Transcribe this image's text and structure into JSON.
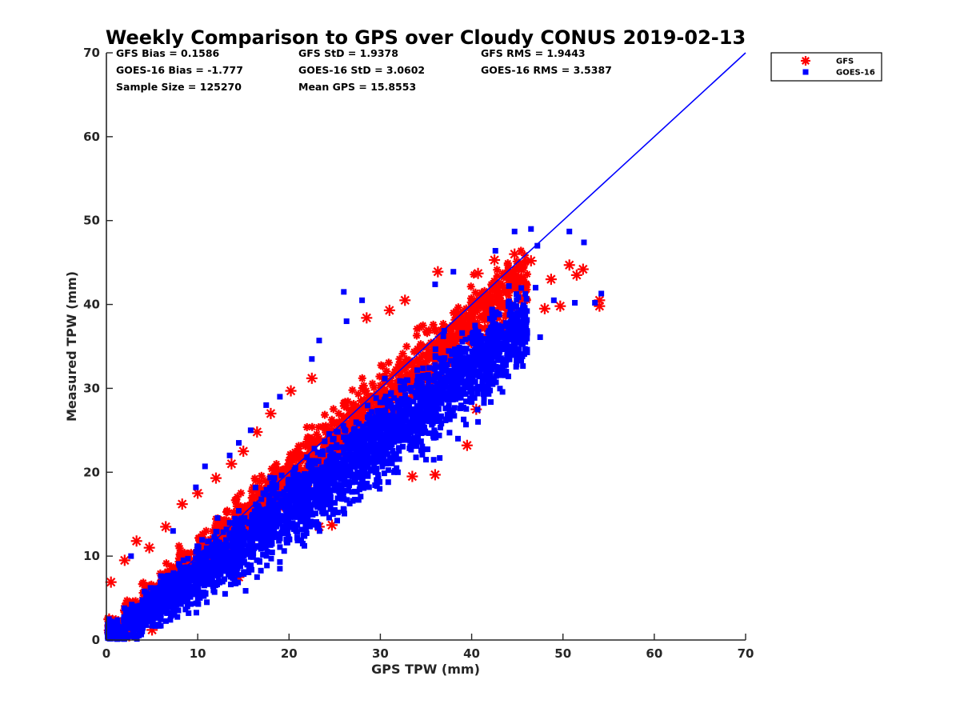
{
  "chart_data": {
    "type": "scatter",
    "title": "Weekly Comparison to GPS over Cloudy CONUS 2019-02-13",
    "xlabel": "GPS TPW (mm)",
    "ylabel": "Measured TPW (mm)",
    "xlim": [
      0,
      70
    ],
    "ylim": [
      0,
      70
    ],
    "xticks": [
      "0",
      "10",
      "20",
      "30",
      "40",
      "50",
      "60",
      "70"
    ],
    "yticks": [
      "0",
      "10",
      "20",
      "30",
      "40",
      "50",
      "60",
      "70"
    ],
    "grid": false,
    "legend_position": "top-right outside plot",
    "stats": [
      [
        "GFS Bias = 0.1586",
        "GFS StD = 1.9378",
        "GFS RMS = 1.9443"
      ],
      [
        "GOES-16 Bias = -1.777",
        "GOES-16 StD = 3.0602",
        "GOES-16 RMS = 3.5387"
      ],
      [
        "Sample Size = 125270",
        "Mean GPS = 15.8553",
        ""
      ]
    ],
    "reference_line": {
      "x": [
        0,
        70
      ],
      "y": [
        0,
        70
      ],
      "color": "#0000ff"
    },
    "series": [
      {
        "name": "GFS",
        "marker": "asterisk",
        "color": "#ff0000",
        "bias": 0.1586,
        "std": 1.9378,
        "points": [
          [
            0.5,
            6.9
          ],
          [
            2,
            9.5
          ],
          [
            3.3,
            11.8
          ],
          [
            4.7,
            11
          ],
          [
            6.5,
            13.5
          ],
          [
            8.3,
            16.2
          ],
          [
            10,
            17.5
          ],
          [
            12,
            19.3
          ],
          [
            13.7,
            21
          ],
          [
            15,
            22.5
          ],
          [
            16.5,
            24.8
          ],
          [
            18,
            27
          ],
          [
            20.2,
            29.7
          ],
          [
            22.5,
            31.2
          ],
          [
            28.5,
            38.4
          ],
          [
            31,
            39.3
          ],
          [
            32.7,
            40.5
          ],
          [
            36.3,
            43.9
          ],
          [
            40.7,
            43.7
          ],
          [
            42.5,
            45.3
          ],
          [
            44.7,
            46
          ],
          [
            46.5,
            45.2
          ],
          [
            48.7,
            43
          ],
          [
            50.7,
            44.7
          ],
          [
            51.5,
            43.5
          ],
          [
            52.2,
            44.2
          ],
          [
            48,
            39.5
          ],
          [
            49.7,
            39.8
          ],
          [
            54,
            40.5
          ],
          [
            54,
            39.8
          ],
          [
            39.5,
            23.2
          ],
          [
            40.5,
            27.5
          ],
          [
            36,
            19.7
          ],
          [
            33.5,
            19.5
          ],
          [
            24.7,
            13.7
          ],
          [
            23.3,
            13.5
          ],
          [
            14.5,
            7.5
          ],
          [
            5,
            1.2
          ],
          [
            1,
            0.5
          ],
          [
            0.3,
            2.5
          ],
          [
            2.5,
            0.5
          ]
        ],
        "density": [
          [
            1,
            1.4,
            0.9
          ],
          [
            3,
            3.4,
            1.1
          ],
          [
            5,
            5.3,
            1.3
          ],
          [
            7,
            7.2,
            1.5
          ],
          [
            9,
            9.1,
            1.7
          ],
          [
            11,
            11,
            1.8
          ],
          [
            13,
            12.9,
            1.9
          ],
          [
            15,
            14.8,
            2.0
          ],
          [
            17,
            16.6,
            2.1
          ],
          [
            19,
            18.5,
            2.2
          ],
          [
            21,
            20.4,
            2.3
          ],
          [
            23,
            22.3,
            2.3
          ],
          [
            25,
            24.2,
            2.4
          ],
          [
            27,
            26.0,
            2.5
          ],
          [
            29,
            27.9,
            2.5
          ],
          [
            31,
            29.7,
            2.6
          ],
          [
            33,
            31.6,
            2.6
          ],
          [
            35,
            33.5,
            2.7
          ],
          [
            37,
            35.3,
            2.7
          ],
          [
            39,
            37.2,
            2.8
          ],
          [
            41,
            39.1,
            2.8
          ],
          [
            43,
            41.0,
            2.9
          ],
          [
            45,
            42.8,
            2.9
          ]
        ]
      },
      {
        "name": "GOES-16",
        "marker": "square",
        "color": "#0000ff",
        "bias": -1.777,
        "std": 3.0602,
        "points": [
          [
            2.7,
            10
          ],
          [
            7.3,
            13
          ],
          [
            9.8,
            18.2
          ],
          [
            10.8,
            20.7
          ],
          [
            13.5,
            22
          ],
          [
            14.5,
            23.5
          ],
          [
            15.8,
            25
          ],
          [
            17.5,
            28
          ],
          [
            19,
            29
          ],
          [
            22.5,
            33.5
          ],
          [
            23.3,
            35.7
          ],
          [
            26,
            41.5
          ],
          [
            26.3,
            38
          ],
          [
            28,
            40.5
          ],
          [
            36,
            42.4
          ],
          [
            38,
            43.9
          ],
          [
            42.6,
            46.4
          ],
          [
            44.7,
            48.7
          ],
          [
            46.5,
            49
          ],
          [
            47.2,
            47
          ],
          [
            50.7,
            48.7
          ],
          [
            52.3,
            47.4
          ],
          [
            54.2,
            41.3
          ],
          [
            53.5,
            40.2
          ],
          [
            47.5,
            36.1
          ],
          [
            49,
            40.5
          ],
          [
            51.3,
            40.2
          ],
          [
            47,
            42
          ],
          [
            41.3,
            29.3
          ],
          [
            42.3,
            30.5
          ],
          [
            38.5,
            24
          ],
          [
            40.7,
            26
          ],
          [
            36.5,
            21.7
          ],
          [
            35,
            21.5
          ],
          [
            31.5,
            20
          ],
          [
            27.5,
            19.5
          ],
          [
            25,
            15.5
          ],
          [
            26.5,
            17.8
          ],
          [
            21.5,
            11.5
          ],
          [
            19,
            9.3
          ],
          [
            19,
            8.5
          ],
          [
            16.5,
            7.5
          ],
          [
            13,
            5.5
          ],
          [
            11,
            4.5
          ],
          [
            9,
            3.2
          ],
          [
            7,
            2.4
          ],
          [
            5,
            1.7
          ],
          [
            3,
            1.0
          ],
          [
            1,
            0.3
          ],
          [
            0.5,
            1.3
          ]
        ],
        "density": [
          [
            1,
            0.7,
            1.2
          ],
          [
            3,
            2.3,
            1.5
          ],
          [
            5,
            3.8,
            1.8
          ],
          [
            7,
            5.4,
            2.1
          ],
          [
            9,
            6.9,
            2.4
          ],
          [
            11,
            8.5,
            2.7
          ],
          [
            13,
            10.1,
            2.9
          ],
          [
            15,
            11.7,
            3.1
          ],
          [
            17,
            13.3,
            3.3
          ],
          [
            19,
            14.9,
            3.4
          ],
          [
            21,
            16.6,
            3.5
          ],
          [
            23,
            18.2,
            3.6
          ],
          [
            25,
            19.8,
            3.7
          ],
          [
            27,
            21.4,
            3.7
          ],
          [
            29,
            23.1,
            3.8
          ],
          [
            31,
            24.8,
            3.8
          ],
          [
            33,
            26.5,
            3.8
          ],
          [
            35,
            28.1,
            3.8
          ],
          [
            37,
            29.8,
            3.8
          ],
          [
            39,
            31.5,
            3.7
          ],
          [
            41,
            33.2,
            3.6
          ],
          [
            43,
            35.0,
            3.5
          ],
          [
            45,
            37.0,
            3.3
          ]
        ]
      }
    ]
  }
}
